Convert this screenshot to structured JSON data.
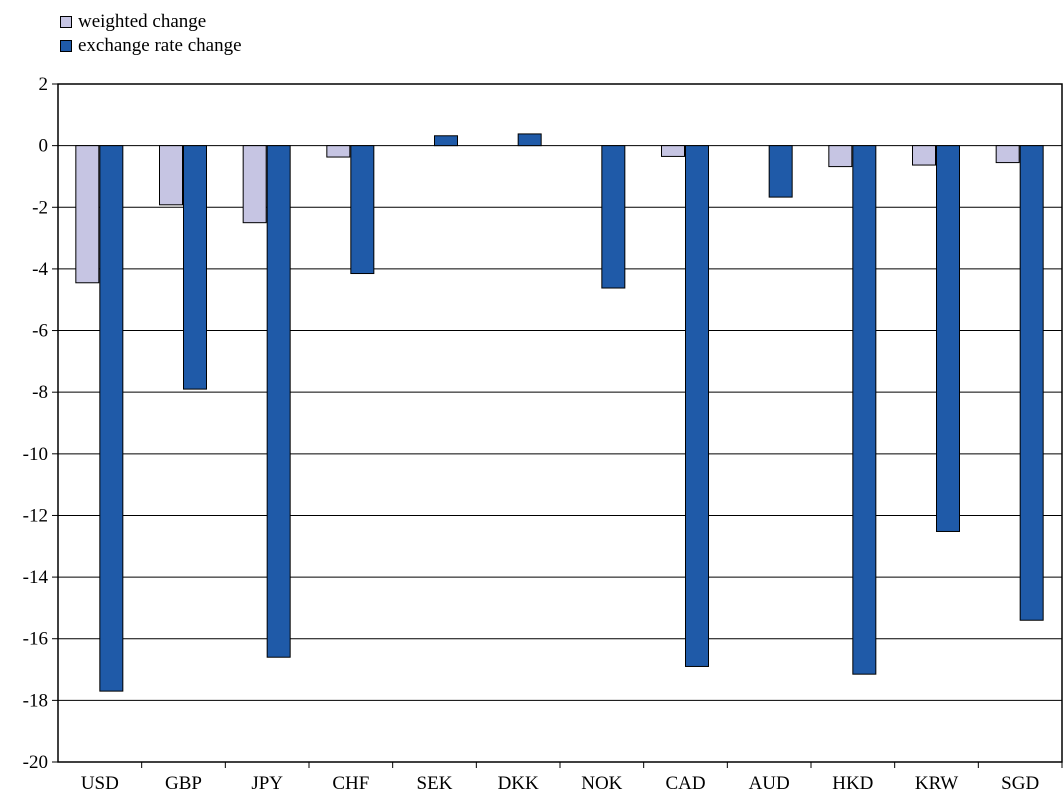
{
  "chart_data": {
    "type": "bar",
    "title": "",
    "xlabel": "",
    "ylabel": "",
    "categories": [
      "USD",
      "GBP",
      "JPY",
      "CHF",
      "SEK",
      "DKK",
      "NOK",
      "CAD",
      "AUD",
      "HKD",
      "KRW",
      "SGD"
    ],
    "series": [
      {
        "name": "weighted change",
        "color": "#c6c5e3",
        "values": [
          -4.45,
          -1.92,
          -2.5,
          -0.37,
          0,
          0,
          0,
          -0.35,
          0,
          -0.68,
          -0.63,
          -0.55
        ]
      },
      {
        "name": "exchange rate change",
        "color": "#1f5aa8",
        "values": [
          -17.7,
          -7.9,
          -16.6,
          -4.15,
          0.32,
          0.38,
          -4.62,
          -16.9,
          -1.67,
          -17.15,
          -12.52,
          -15.4
        ]
      }
    ],
    "ylim": [
      -20,
      2
    ],
    "yticks": [
      2,
      0,
      -2,
      -4,
      -6,
      -8,
      -10,
      -12,
      -14,
      -16,
      -18,
      -20
    ],
    "grid": true,
    "legend_position": "top-left"
  }
}
